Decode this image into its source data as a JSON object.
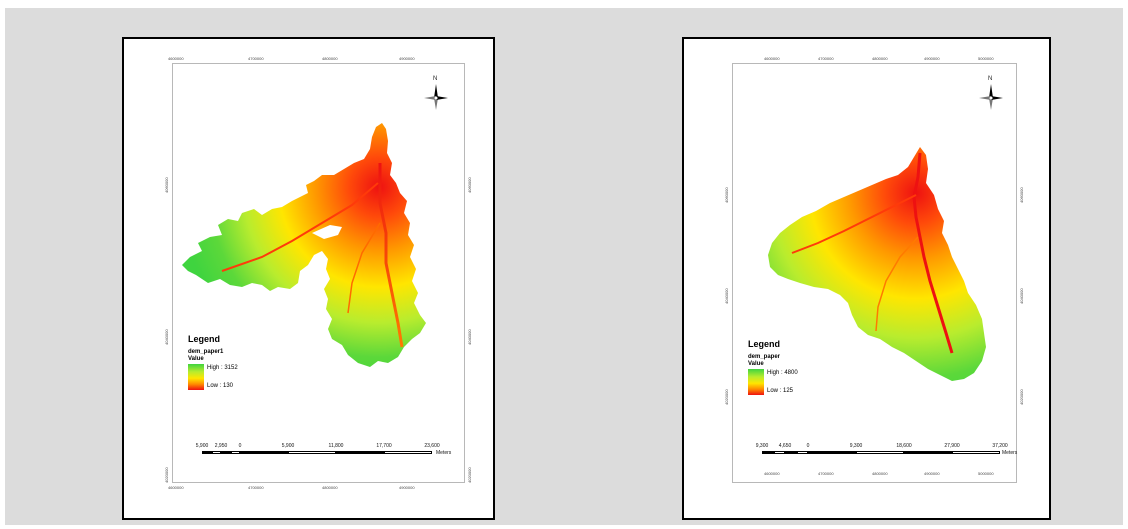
{
  "maps": [
    {
      "legend_title": "Legend",
      "layer": "dem_paper1",
      "value_label": "Value",
      "high": "High : 3152",
      "low": "Low : 130",
      "north": "N",
      "top_ticks": [
        "4600000",
        "4700000",
        "4800000",
        "4900000"
      ],
      "bottom_ticks": [
        "4600000",
        "4700000",
        "4800000",
        "4900000"
      ],
      "left_ticks": [
        "4060000",
        "4040000",
        "4020000"
      ],
      "right_ticks": [
        "4060000",
        "4040000",
        "4020000"
      ],
      "scale_labels": [
        "5,900",
        "2,950",
        "0",
        "5,900",
        "11,800",
        "17,700",
        "23,600"
      ],
      "scale_unit": "Meters"
    },
    {
      "legend_title": "Legend",
      "layer": "dem_paper",
      "value_label": "Value",
      "high": "High : 4800",
      "low": "Low : 125",
      "north": "N",
      "top_ticks": [
        "4600000",
        "4700000",
        "4800000",
        "4900000",
        "5000000"
      ],
      "bottom_ticks": [
        "4600000",
        "4700000",
        "4800000",
        "4900000",
        "5000000"
      ],
      "left_ticks": [
        "4060000",
        "4040000",
        "4020000"
      ],
      "right_ticks": [
        "4060000",
        "4040000",
        "4020000"
      ],
      "scale_labels": [
        "9,300",
        "4,650",
        "0",
        "9,300",
        "18,600",
        "27,900",
        "37,200"
      ],
      "scale_unit": "Meters"
    }
  ],
  "colors": {
    "background": "#dcdcdc",
    "high": "#3fd43f",
    "mid": "#ffe600",
    "low": "#ee1111"
  }
}
